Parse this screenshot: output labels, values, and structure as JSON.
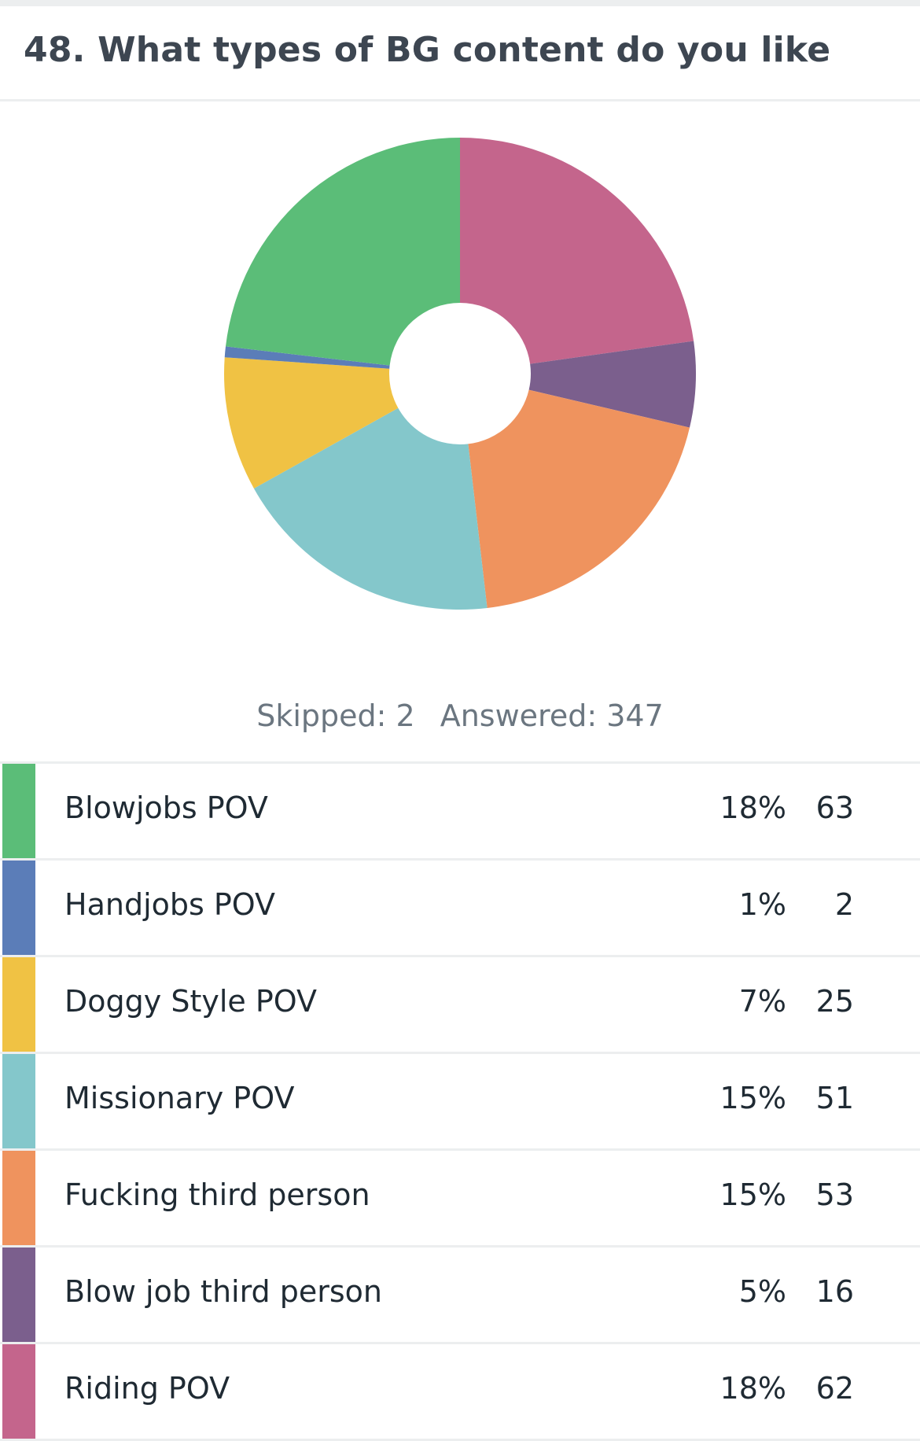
{
  "question": {
    "title": "48. What types of BG content do you like"
  },
  "summary": {
    "skipped_label": "Skipped: 2",
    "answered_label": "Answered: 347"
  },
  "chart_data": {
    "type": "pie",
    "title": "48. What types of BG content do you like",
    "donut": true,
    "answered": 347,
    "skipped": 2,
    "categories": [
      "Blowjobs POV",
      "Handjobs POV",
      "Doggy Style POV",
      "Missionary POV",
      "Fucking third person",
      "Blow job third person",
      "Riding POV"
    ],
    "values": [
      63,
      2,
      25,
      51,
      53,
      16,
      62
    ],
    "percent_labels": [
      "18%",
      "1%",
      "7%",
      "15%",
      "15%",
      "5%",
      "18%"
    ],
    "count_labels": [
      "63",
      "2",
      "25",
      "51",
      "53",
      "16",
      "62"
    ],
    "colors": [
      "#5bbd78",
      "#5b7db8",
      "#f0c244",
      "#84c7cb",
      "#ef935e",
      "#7b5f8d",
      "#c4658c"
    ]
  }
}
